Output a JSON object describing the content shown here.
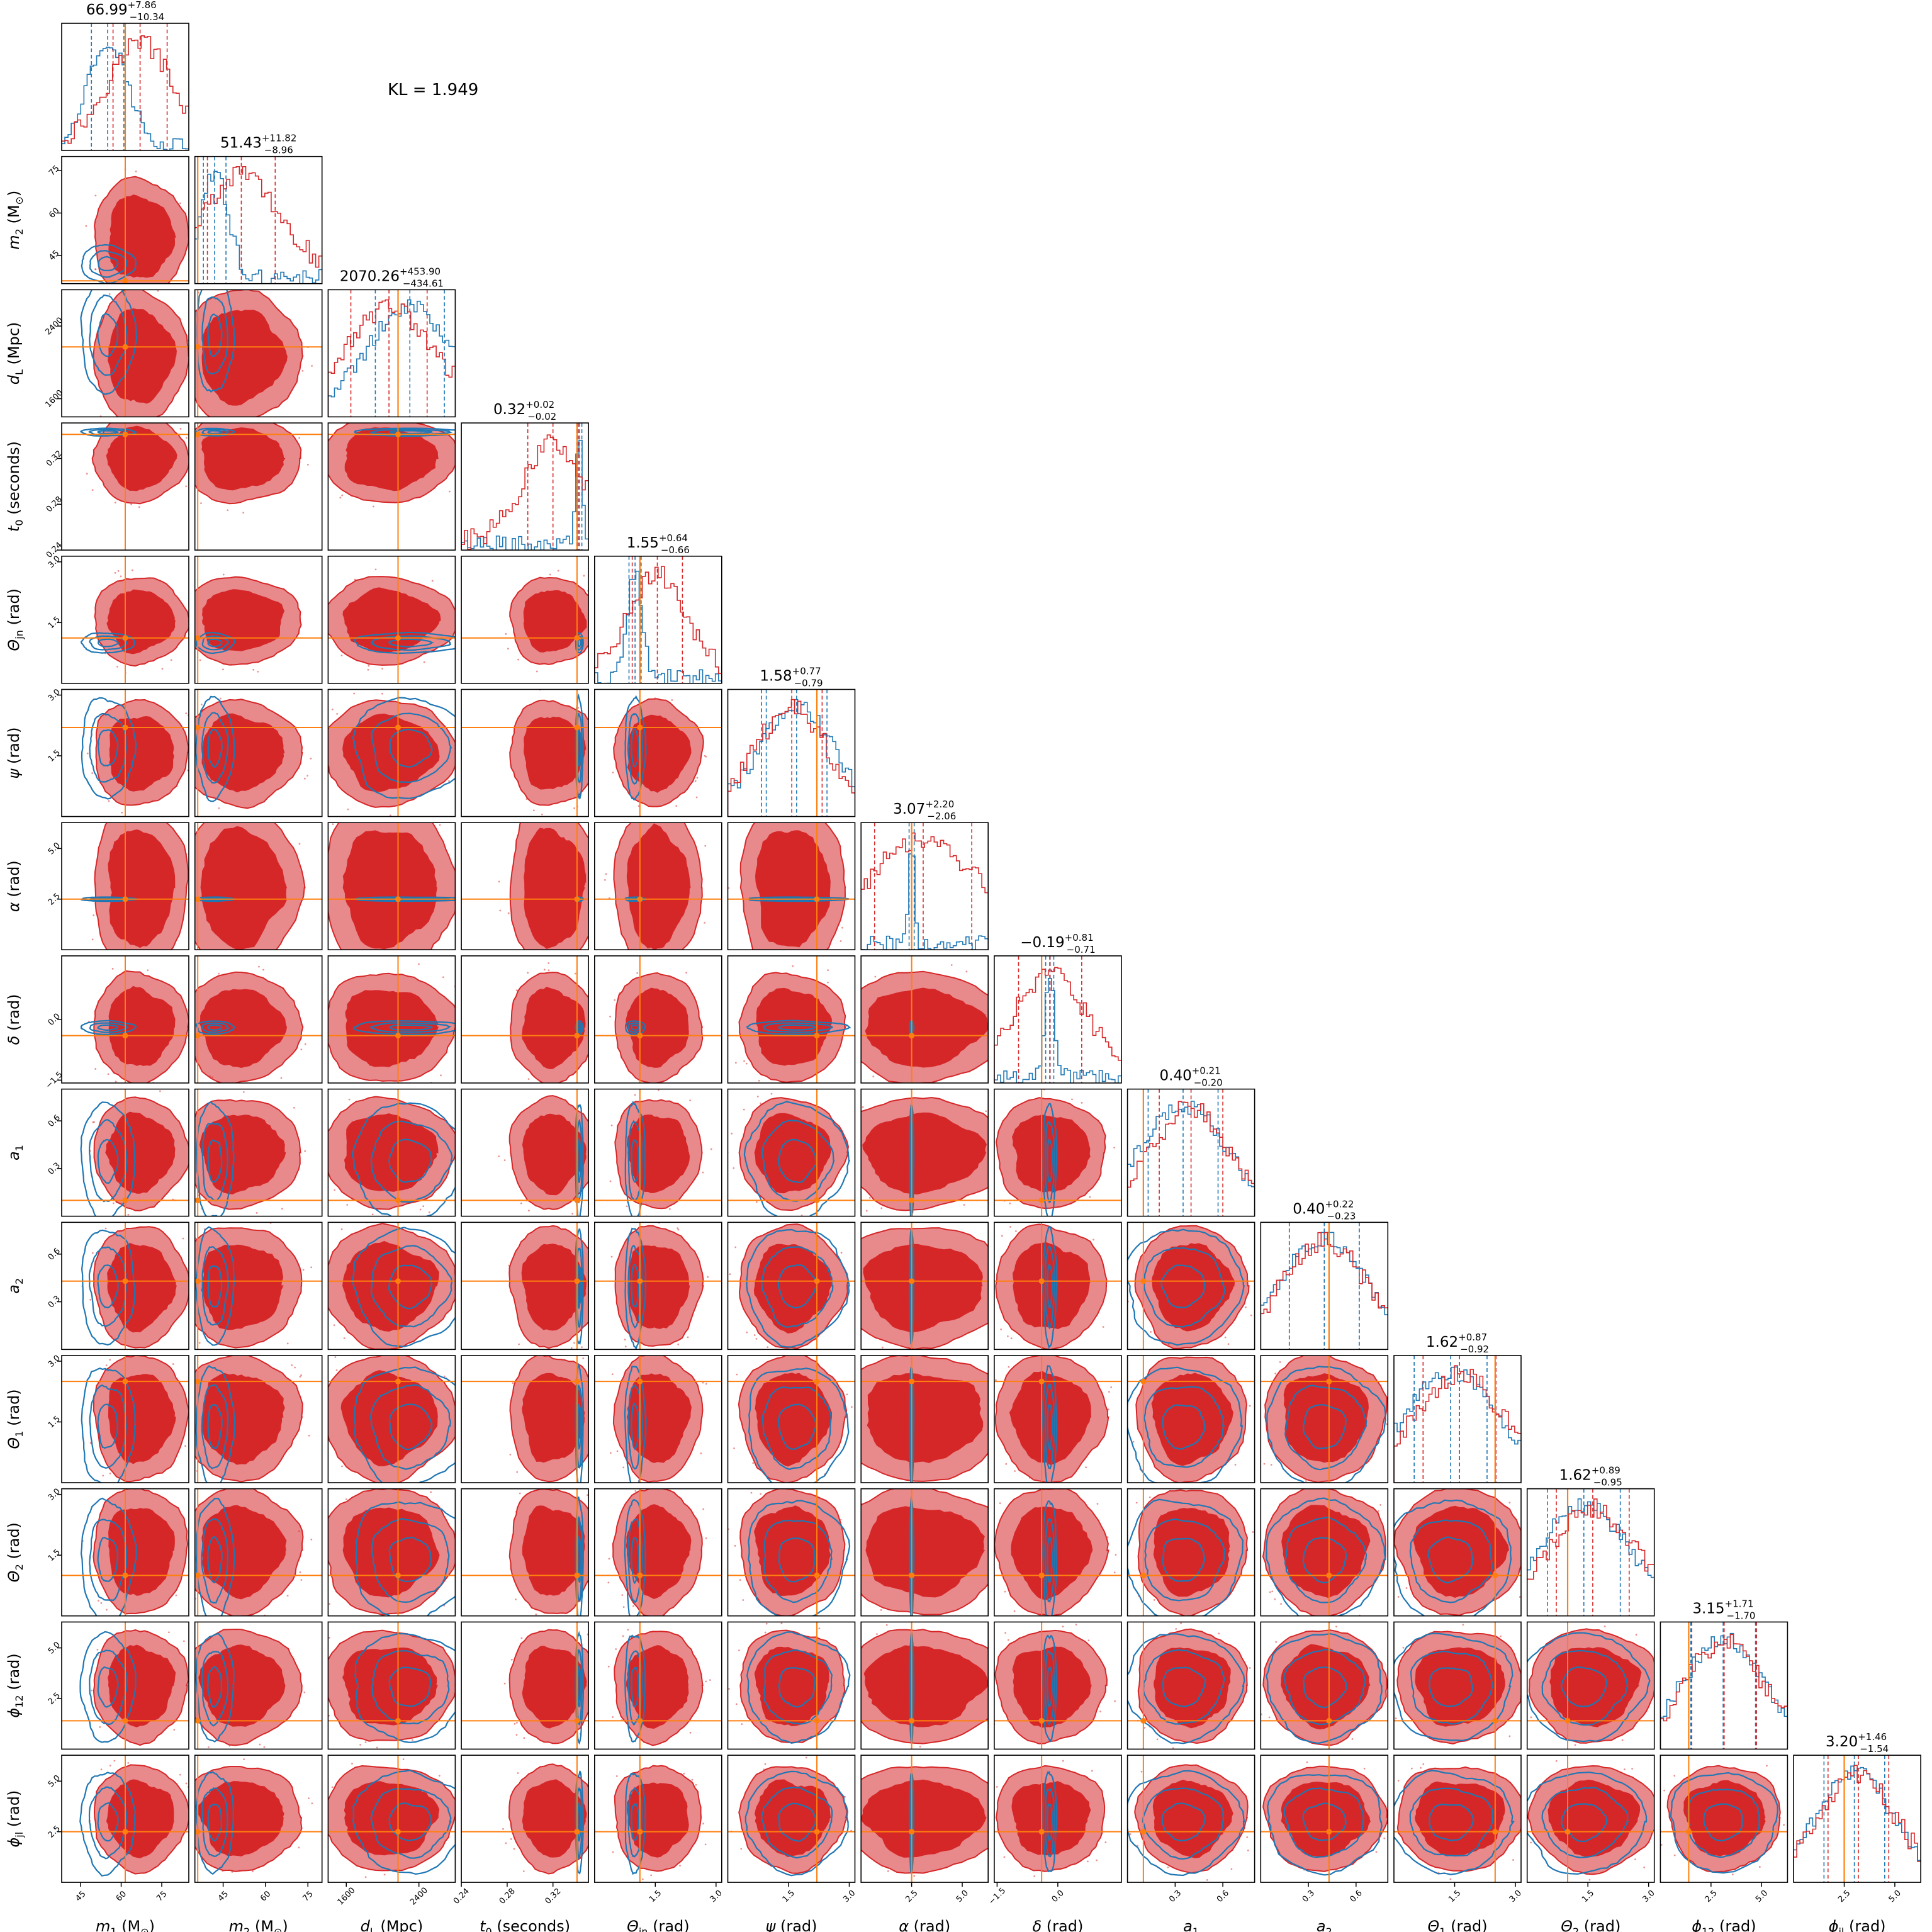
{
  "annotation": "KL = 1.949",
  "colors": {
    "prior_hist": "#1f77b4",
    "posterior_hist": "#d62728",
    "posterior_fill_outer": "#e8898c",
    "posterior_fill_inner": "#d62728",
    "contour_line_red": "#d62728",
    "contour_line_blue": "#1f77b4",
    "injection": "#ff7f0e"
  },
  "chart_data": {
    "type": "corner",
    "parameters": [
      {
        "label": "m_1 (M_⊙)",
        "xlabel_main": "m",
        "sub": "1",
        "unit": " (M",
        "unit_sub": "⊙",
        "unit_end": ")",
        "range": [
          38,
          85
        ],
        "ticks": [
          45,
          60,
          75
        ],
        "tick_labels": [
          "45",
          "60",
          "75"
        ],
        "title_main": "66.99",
        "title_sup": "+7.86",
        "title_sub": "−10.34",
        "truth": 61.5
      },
      {
        "label": "m_2 (M_⊙)",
        "xlabel_main": "m",
        "sub": "2",
        "unit": " (M",
        "unit_sub": "⊙",
        "unit_end": ")",
        "range": [
          35,
          80
        ],
        "ticks": [
          45,
          60,
          75
        ],
        "tick_labels": [
          "45",
          "60",
          "75"
        ],
        "title_main": "51.43",
        "title_sup": "+11.82",
        "title_sub": "−8.96",
        "truth": 36.0
      },
      {
        "label": "d_L (Mpc)",
        "xlabel_main": "d",
        "sub": "L",
        "unit": " (Mpc)",
        "unit_sub": "",
        "unit_end": "",
        "range": [
          1400,
          2800
        ],
        "ticks": [
          1600,
          2400
        ],
        "tick_labels": [
          "1600",
          "2400"
        ],
        "title_main": "2070.26",
        "title_sup": "+453.90",
        "title_sub": "−434.61",
        "truth": 2170
      },
      {
        "label": "t_0 (seconds)",
        "xlabel_main": "t",
        "sub": "0",
        "unit": " (seconds)",
        "unit_sub": "",
        "unit_end": "",
        "range": [
          0.24,
          0.351
        ],
        "ticks": [
          0.24,
          0.28,
          0.32
        ],
        "tick_labels": [
          "0.24",
          "0.28",
          "0.32"
        ],
        "title_main": "0.32",
        "title_sup": "+0.02",
        "title_sub": "−0.02",
        "truth": 0.341
      },
      {
        "label": "Θ_jn (rad)",
        "xlabel_main": "Θ",
        "sub": "jn",
        "unit": " (rad)",
        "unit_sub": "",
        "unit_end": "",
        "range": [
          0,
          3.14
        ],
        "ticks": [
          1.5,
          3.0
        ],
        "tick_labels": [
          "1.5",
          "3.0"
        ],
        "title_main": "1.55",
        "title_sup": "+0.64",
        "title_sub": "−0.66",
        "truth": 1.12
      },
      {
        "label": "ψ (rad)",
        "xlabel_main": "ψ",
        "sub": "",
        "unit": " (rad)",
        "unit_sub": "",
        "unit_end": "",
        "range": [
          0,
          3.14
        ],
        "ticks": [
          1.5,
          3.0
        ],
        "tick_labels": [
          "1.5",
          "3.0"
        ],
        "title_main": "1.58",
        "title_sup": "+0.77",
        "title_sub": "−0.79",
        "truth": 2.2
      },
      {
        "label": "α (rad)",
        "xlabel_main": "α",
        "sub": "",
        "unit": " (rad)",
        "unit_sub": "",
        "unit_end": "",
        "range": [
          0,
          6.28
        ],
        "ticks": [
          2.5,
          5.0
        ],
        "tick_labels": [
          "2.5",
          "5.0"
        ],
        "title_main": "3.07",
        "title_sup": "+2.20",
        "title_sub": "−2.06",
        "truth": 2.5
      },
      {
        "label": "δ (rad)",
        "xlabel_main": "δ",
        "sub": "",
        "unit": " (rad)",
        "unit_sub": "",
        "unit_end": "",
        "range": [
          -1.57,
          1.57
        ],
        "ticks": [
          -1.5,
          0.0
        ],
        "tick_labels": [
          "−1.5",
          "0.0"
        ],
        "title_main": "−0.19",
        "title_sup": "+0.81",
        "title_sub": "−0.71",
        "truth": -0.4
      },
      {
        "label": "a_1",
        "xlabel_main": "a",
        "sub": "1",
        "unit": "",
        "unit_sub": "",
        "unit_end": "",
        "range": [
          0,
          0.8
        ],
        "ticks": [
          0.3,
          0.6
        ],
        "tick_labels": [
          "0.3",
          "0.6"
        ],
        "title_main": "0.40",
        "title_sup": "+0.21",
        "title_sub": "−0.20",
        "truth": 0.1
      },
      {
        "label": "a_2",
        "xlabel_main": "a",
        "sub": "2",
        "unit": "",
        "unit_sub": "",
        "unit_end": "",
        "range": [
          0,
          0.8
        ],
        "ticks": [
          0.3,
          0.6
        ],
        "tick_labels": [
          "0.3",
          "0.6"
        ],
        "title_main": "0.40",
        "title_sup": "+0.22",
        "title_sub": "−0.23",
        "truth": 0.43
      },
      {
        "label": "Θ_1 (rad)",
        "xlabel_main": "Θ",
        "sub": "1",
        "unit": " (rad)",
        "unit_sub": "",
        "unit_end": "",
        "range": [
          0,
          3.14
        ],
        "ticks": [
          1.5,
          3.0
        ],
        "tick_labels": [
          "1.5",
          "3.0"
        ],
        "title_main": "1.62",
        "title_sup": "+0.87",
        "title_sub": "−0.92",
        "truth": 2.5
      },
      {
        "label": "Θ_2 (rad)",
        "xlabel_main": "Θ",
        "sub": "2",
        "unit": " (rad)",
        "unit_sub": "",
        "unit_end": "",
        "range": [
          0,
          3.14
        ],
        "ticks": [
          1.5,
          3.0
        ],
        "tick_labels": [
          "1.5",
          "3.0"
        ],
        "title_main": "1.62",
        "title_sup": "+0.89",
        "title_sub": "−0.95",
        "truth": 1.0
      },
      {
        "label": "ϕ_12 (rad)",
        "xlabel_main": "ϕ",
        "sub": "12",
        "unit": " (rad)",
        "unit_sub": "",
        "unit_end": "",
        "range": [
          0,
          6.28
        ],
        "ticks": [
          2.5,
          5.0
        ],
        "tick_labels": [
          "2.5",
          "5.0"
        ],
        "title_main": "3.15",
        "title_sup": "+1.71",
        "title_sub": "−1.70",
        "truth": 1.4
      },
      {
        "label": "ϕ_jl (rad)",
        "xlabel_main": "ϕ",
        "sub": "jl",
        "unit": " (rad)",
        "unit_sub": "",
        "unit_end": "",
        "range": [
          0,
          6.28
        ],
        "ticks": [
          2.5,
          5.0
        ],
        "tick_labels": [
          "2.5",
          "5.0"
        ],
        "title_main": "3.20",
        "title_sup": "+1.46",
        "title_sub": "−1.54",
        "truth": 2.5
      }
    ],
    "posterior_median": [
      66.99,
      51.43,
      2070.26,
      0.32,
      1.55,
      1.58,
      3.07,
      -0.19,
      0.4,
      0.4,
      1.62,
      1.62,
      3.15,
      3.2
    ],
    "posterior_spread": [
      10,
      12,
      420,
      0.022,
      0.62,
      0.75,
      2.4,
      0.78,
      0.2,
      0.22,
      0.9,
      0.9,
      1.6,
      1.5
    ],
    "prior_center": [
      55,
      42,
      2300,
      0.343,
      1.0,
      1.7,
      2.5,
      -0.2,
      0.35,
      0.4,
      1.4,
      1.4,
      3.1,
      3.0
    ],
    "prior_spread": [
      6,
      4,
      380,
      0.002,
      0.15,
      0.75,
      0.06,
      0.1,
      0.22,
      0.22,
      0.9,
      0.9,
      1.6,
      1.5
    ]
  }
}
